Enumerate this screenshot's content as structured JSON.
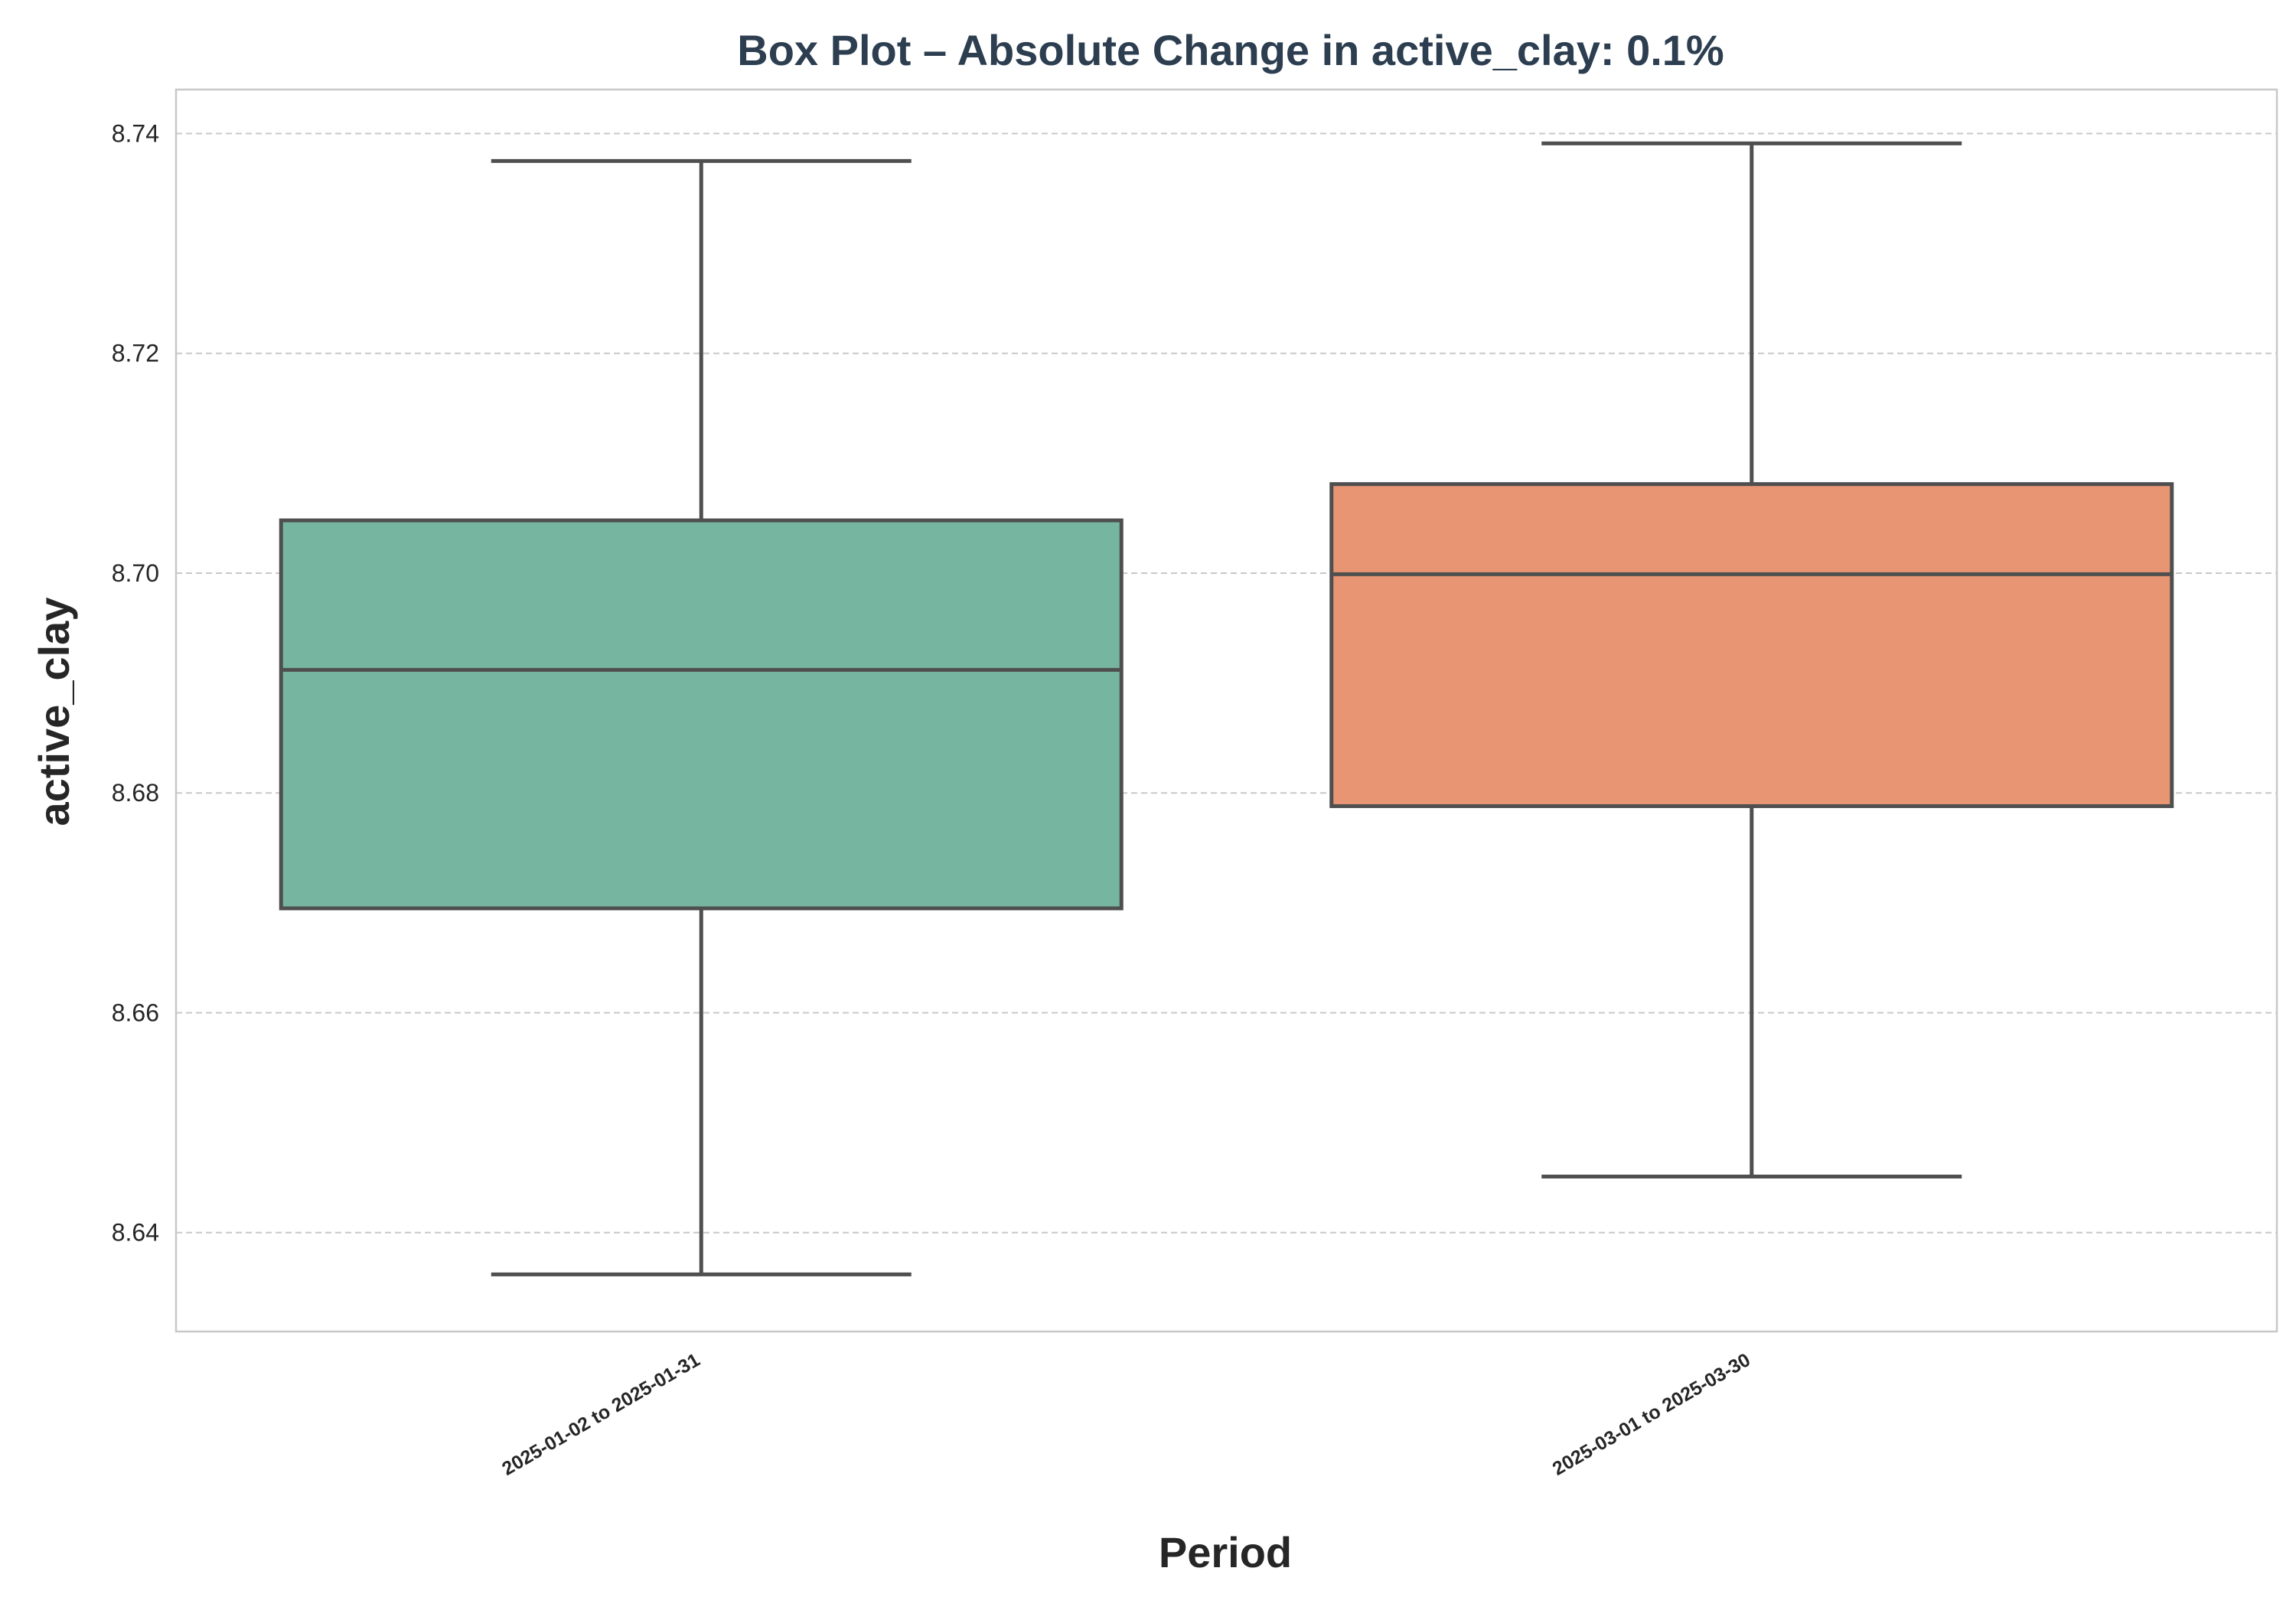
{
  "chart_data": {
    "type": "box",
    "title": "Box Plot – Absolute Change in active_clay: 0.1%",
    "xlabel": "Period",
    "ylabel": "active_clay",
    "ylim": [
      8.631,
      8.744
    ],
    "yticks": [
      "8.64",
      "8.66",
      "8.68",
      "8.70",
      "8.72",
      "8.74"
    ],
    "ytick_values": [
      8.64,
      8.66,
      8.68,
      8.7,
      8.72,
      8.74
    ],
    "grid": true,
    "categories": [
      "2025-01-02 to 2025-01-31",
      "2025-03-01 to 2025-03-30"
    ],
    "boxes": [
      {
        "category": "2025-01-02 to 2025-01-31",
        "whisker_low": 8.6362,
        "q1": 8.6695,
        "median": 8.6912,
        "q3": 8.7048,
        "whisker_high": 8.7375,
        "color": "#76b6a0"
      },
      {
        "category": "2025-03-01 to 2025-03-30",
        "whisker_low": 8.6451,
        "q1": 8.6788,
        "median": 8.6999,
        "q3": 8.7081,
        "whisker_high": 8.7391,
        "color": "#e89574"
      }
    ]
  }
}
